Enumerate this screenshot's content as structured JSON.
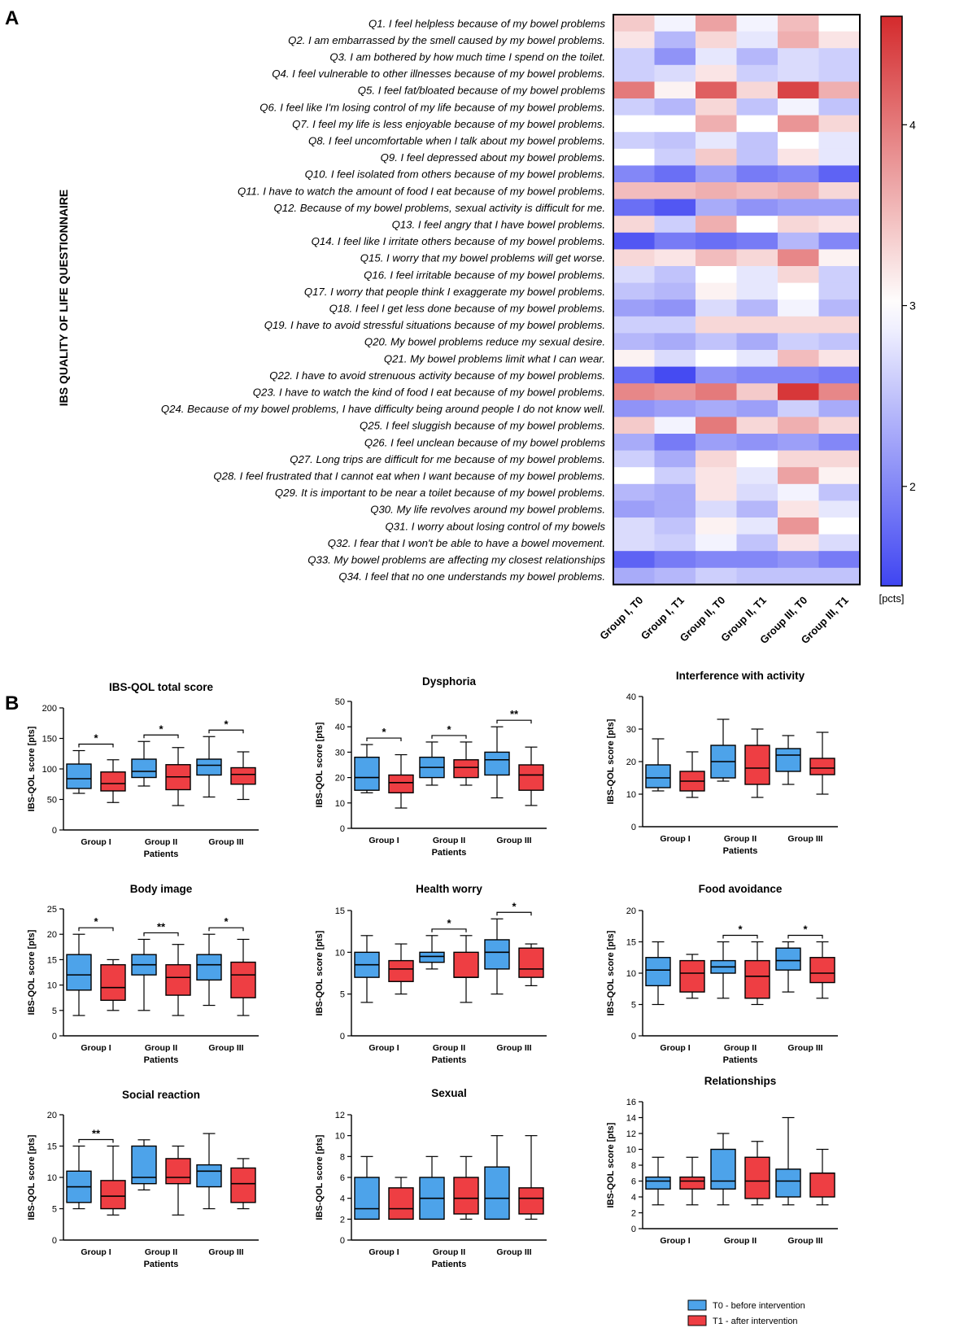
{
  "figure": {
    "panel_a_label": "A",
    "panel_b_label": "B"
  },
  "chart_data": [
    {
      "type": "heatmap",
      "id": "heatmap",
      "ylabel": "IBS QUALITY OF LIFE QUESTIONNAIRE",
      "columns": [
        "Group I, T0",
        "Group I, T1",
        "Group II, T0",
        "Group II, T1",
        "Group III, T0",
        "Group III, T1"
      ],
      "rows": [
        "Q1. I feel helpless because of my bowel problems",
        "Q2. I am embarrassed by the smell caused by my bowel problems.",
        "Q3. I am bothered by how much time I spend on the toilet.",
        "Q4. I feel vulnerable to other illnesses because of my bowel problems.",
        "Q5. I feel fat/bloated because of my bowel problems",
        "Q6. I feel like I'm losing control of my life because of my bowel problems.",
        "Q7. I feel my life is less enjoyable because of my bowel problems.",
        "Q8. I feel uncomfortable when I talk about my bowel problems.",
        "Q9. I feel depressed about my bowel problems.",
        "Q10. I feel isolated from others because of my bowel problems.",
        "Q11. I have to watch the amount of food I eat because of my bowel problems.",
        "Q12. Because of my bowel problems, sexual activity is difficult for me.",
        "Q13. I feel angry that I have bowel problems.",
        "Q14. I feel like I irritate others because of my bowel problems.",
        "Q15. I worry that my bowel problems will get worse.",
        "Q16. I feel irritable because of my bowel problems.",
        "Q17. I worry that people think I exaggerate my bowel problems.",
        "Q18. I feel I get less done because of my bowel problems.",
        "Q19. I have to avoid stressful situations because of my bowel problems.",
        "Q20. My bowel problems reduce my sexual desire.",
        "Q21. My bowel problems limit what I can wear.",
        "Q22. I have to avoid strenuous activity because of my bowel problems.",
        "Q23. I have to watch the kind of food I eat because of my bowel problems.",
        "Q24. Because of my bowel problems, I have difficulty being around people I do not know well.",
        "Q25. I feel sluggish because of my bowel problems.",
        "Q26. I feel unclean because of my bowel problems",
        "Q27. Long trips are difficult for me because of my bowel problems.",
        "Q28. I feel frustrated that I cannot eat when I want because of my bowel problems.",
        "Q29. It is important to be near a toilet because of my bowel problems.",
        "Q30. My life revolves around my bowel problems.",
        "Q31. I worry about losing control of my bowels",
        "Q32. I fear that I won't be able to have a bowel movement.",
        "Q33. My bowel problems are affecting my closest relationships",
        "Q34. I feel that no one understands my bowel problems."
      ],
      "values": [
        [
          3.4,
          2.9,
          3.7,
          2.9,
          3.5,
          3.0
        ],
        [
          3.2,
          2.4,
          3.3,
          2.8,
          3.6,
          3.2
        ],
        [
          2.6,
          2.1,
          2.8,
          2.4,
          2.7,
          2.6
        ],
        [
          2.6,
          2.7,
          3.2,
          2.6,
          2.7,
          2.6
        ],
        [
          4.0,
          3.1,
          4.2,
          3.3,
          4.4,
          3.6
        ],
        [
          2.6,
          2.4,
          3.3,
          2.5,
          2.9,
          2.5
        ],
        [
          3.0,
          3.0,
          3.6,
          3.0,
          3.8,
          3.3
        ],
        [
          2.6,
          2.5,
          2.8,
          2.5,
          3.0,
          2.8
        ],
        [
          3.0,
          2.6,
          3.4,
          2.5,
          3.2,
          2.8
        ],
        [
          2.0,
          1.8,
          2.2,
          1.9,
          2.0,
          1.7
        ],
        [
          3.5,
          3.5,
          3.6,
          3.5,
          3.6,
          3.3
        ],
        [
          1.8,
          1.6,
          2.3,
          2.1,
          2.2,
          2.2
        ],
        [
          3.3,
          2.6,
          3.6,
          3.0,
          3.3,
          3.2
        ],
        [
          1.6,
          1.9,
          1.8,
          1.9,
          2.4,
          2.0
        ],
        [
          3.3,
          3.2,
          3.5,
          3.3,
          3.9,
          3.1
        ],
        [
          2.7,
          2.5,
          3.0,
          2.8,
          3.3,
          2.6
        ],
        [
          2.5,
          2.4,
          3.1,
          2.8,
          3.0,
          2.6
        ],
        [
          2.2,
          2.1,
          2.7,
          2.4,
          2.9,
          2.4
        ],
        [
          2.6,
          2.6,
          3.3,
          3.3,
          3.3,
          3.3
        ],
        [
          2.4,
          2.3,
          2.5,
          2.3,
          2.6,
          2.5
        ],
        [
          3.1,
          2.7,
          3.0,
          2.8,
          3.5,
          3.2
        ],
        [
          1.8,
          1.5,
          2.1,
          2.0,
          2.0,
          1.9
        ],
        [
          3.9,
          3.8,
          4.0,
          3.4,
          4.5,
          3.9
        ],
        [
          2.1,
          2.2,
          2.3,
          2.2,
          2.6,
          2.3
        ],
        [
          3.4,
          2.9,
          4.0,
          3.3,
          3.6,
          3.3
        ],
        [
          2.3,
          1.9,
          2.2,
          2.1,
          2.2,
          2.0
        ],
        [
          2.6,
          2.3,
          3.3,
          3.0,
          3.3,
          3.3
        ],
        [
          3.0,
          2.6,
          3.2,
          2.8,
          3.7,
          3.1
        ],
        [
          2.4,
          2.3,
          3.2,
          2.7,
          2.9,
          2.5
        ],
        [
          2.2,
          2.3,
          2.7,
          2.4,
          3.2,
          2.8
        ],
        [
          2.7,
          2.5,
          3.1,
          2.8,
          3.8,
          3.0
        ],
        [
          2.7,
          2.6,
          2.9,
          2.5,
          3.2,
          2.7
        ],
        [
          1.7,
          1.9,
          2.0,
          2.0,
          2.1,
          1.9
        ],
        [
          2.3,
          2.4,
          2.6,
          2.5,
          2.5,
          2.5
        ]
      ],
      "colorbar": {
        "ticks": [
          2,
          3,
          4
        ],
        "label": "[pcts]",
        "min": 1.45,
        "max": 4.6
      }
    },
    {
      "type": "box",
      "title": "IBS-QOL total score",
      "ylabel": "IBS-QOL score [pts]",
      "xlabel": "Patients",
      "ylim": [
        0,
        200
      ],
      "yticks": [
        0,
        50,
        100,
        150,
        200
      ],
      "categories": [
        "Group I",
        "Group II",
        "Group III"
      ],
      "series": [
        {
          "name": "T0",
          "boxes": [
            [
              60,
              68,
              84,
              108,
              130
            ],
            [
              72,
              86,
              96,
              116,
              145
            ],
            [
              54,
              90,
              106,
              116,
              153
            ]
          ]
        },
        {
          "name": "T1",
          "boxes": [
            [
              45,
              64,
              76,
              95,
              115
            ],
            [
              40,
              66,
              87,
              107,
              135
            ],
            [
              50,
              75,
              91,
              102,
              128
            ]
          ]
        }
      ],
      "significance": [
        [
          "Group I",
          "*"
        ],
        [
          "Group II",
          "*"
        ],
        [
          "Group III",
          "*"
        ]
      ]
    },
    {
      "type": "box",
      "title": "Dysphoria",
      "ylabel": "IBS-QOL score [pts]",
      "xlabel": "Patients",
      "ylim": [
        0,
        50
      ],
      "yticks": [
        0,
        10,
        20,
        30,
        40,
        50
      ],
      "categories": [
        "Group I",
        "Group II",
        "Group III"
      ],
      "series": [
        {
          "name": "T0",
          "boxes": [
            [
              14,
              15,
              20,
              28,
              33
            ],
            [
              17,
              20,
              24,
              28,
              34
            ],
            [
              12,
              21,
              27,
              30,
              40
            ]
          ]
        },
        {
          "name": "T1",
          "boxes": [
            [
              8,
              14,
              18,
              21,
              29
            ],
            [
              17,
              20,
              24,
              27,
              34
            ],
            [
              9,
              15,
              21,
              25,
              32
            ]
          ]
        }
      ],
      "significance": [
        [
          "Group I",
          "*"
        ],
        [
          "Group II",
          "*"
        ],
        [
          "Group III",
          "**"
        ]
      ]
    },
    {
      "type": "box",
      "title": "Interference with activity",
      "ylabel": "IBS-QOL score [pts]",
      "xlabel": "Patients",
      "ylim": [
        0,
        40
      ],
      "yticks": [
        0,
        10,
        20,
        30,
        40
      ],
      "categories": [
        "Group I",
        "Group II",
        "Group III"
      ],
      "series": [
        {
          "name": "T0",
          "boxes": [
            [
              11,
              12,
              15,
              19,
              27
            ],
            [
              14,
              15,
              20,
              25,
              33
            ],
            [
              13,
              17,
              22,
              24,
              28
            ]
          ]
        },
        {
          "name": "T1",
          "boxes": [
            [
              9,
              11,
              14,
              17,
              23
            ],
            [
              9,
              13,
              18,
              25,
              30
            ],
            [
              10,
              16,
              18,
              21,
              29
            ]
          ]
        }
      ],
      "significance": []
    },
    {
      "type": "box",
      "title": "Body image",
      "ylabel": "IBS-QOL score [pts]",
      "xlabel": "Patients",
      "ylim": [
        0,
        25
      ],
      "yticks": [
        0,
        5,
        10,
        15,
        20,
        25
      ],
      "categories": [
        "Group I",
        "Group II",
        "Group III"
      ],
      "series": [
        {
          "name": "T0",
          "boxes": [
            [
              4,
              9,
              12,
              16,
              20
            ],
            [
              5,
              12,
              14,
              16,
              19
            ],
            [
              6,
              11,
              14,
              16,
              20
            ]
          ]
        },
        {
          "name": "T1",
          "boxes": [
            [
              5,
              7,
              9.5,
              14,
              15
            ],
            [
              4,
              8,
              11.5,
              14,
              18
            ],
            [
              4,
              7.5,
              12,
              14.5,
              19
            ]
          ]
        }
      ],
      "significance": [
        [
          "Group I",
          "*"
        ],
        [
          "Group II",
          "**"
        ],
        [
          "Group III",
          "*"
        ]
      ]
    },
    {
      "type": "box",
      "title": "Health worry",
      "ylabel": "IBS-QOL score [pts]",
      "xlabel": "Patients",
      "ylim": [
        0,
        15
      ],
      "yticks": [
        0,
        5,
        10,
        15
      ],
      "categories": [
        "Group I",
        "Group II",
        "Group III"
      ],
      "series": [
        {
          "name": "T0",
          "boxes": [
            [
              4,
              7,
              8.5,
              10,
              12
            ],
            [
              8,
              8.8,
              9.5,
              10,
              12
            ],
            [
              5,
              8,
              10,
              11.5,
              14
            ]
          ]
        },
        {
          "name": "T1",
          "boxes": [
            [
              5,
              6.5,
              8,
              9,
              11
            ],
            [
              4,
              7,
              7,
              10,
              12
            ],
            [
              6,
              7,
              8,
              10.5,
              11
            ]
          ]
        }
      ],
      "significance": [
        [
          "Group II",
          "*"
        ],
        [
          "Group III",
          "*"
        ]
      ]
    },
    {
      "type": "box",
      "title": "Food avoidance",
      "ylabel": "IBS-QOL score [pts]",
      "xlabel": "Patients",
      "ylim": [
        0,
        20
      ],
      "yticks": [
        0,
        5,
        10,
        15,
        20
      ],
      "categories": [
        "Group I",
        "Group II",
        "Group III"
      ],
      "series": [
        {
          "name": "T0",
          "boxes": [
            [
              5,
              8,
              10.5,
              12.5,
              15
            ],
            [
              6,
              10,
              11,
              12,
              15
            ],
            [
              7,
              10.5,
              12,
              14,
              15
            ]
          ]
        },
        {
          "name": "T1",
          "boxes": [
            [
              6,
              7,
              10,
              12,
              13
            ],
            [
              5,
              6,
              9.5,
              12,
              15
            ],
            [
              6,
              8.5,
              10,
              12.5,
              15
            ]
          ]
        }
      ],
      "significance": [
        [
          "Group II",
          "*"
        ],
        [
          "Group III",
          "*"
        ]
      ]
    },
    {
      "type": "box",
      "title": "Social reaction",
      "ylabel": "IBS-QOL score [pts]",
      "xlabel": "Patients",
      "ylim": [
        0,
        20
      ],
      "yticks": [
        0,
        5,
        10,
        15,
        20
      ],
      "categories": [
        "Group I",
        "Group II",
        "Group III"
      ],
      "series": [
        {
          "name": "T0",
          "boxes": [
            [
              5,
              6,
              8.5,
              11,
              15
            ],
            [
              8,
              9,
              10,
              15,
              16
            ],
            [
              5,
              8.5,
              11,
              12,
              17
            ]
          ]
        },
        {
          "name": "T1",
          "boxes": [
            [
              4,
              5,
              7,
              9.5,
              15
            ],
            [
              4,
              9,
              10,
              13,
              15
            ],
            [
              5,
              6,
              9,
              11.5,
              13
            ]
          ]
        }
      ],
      "significance": [
        [
          "Group I",
          "**"
        ]
      ]
    },
    {
      "type": "box",
      "title": "Sexual",
      "ylabel": "IBS-QOL score [pts]",
      "xlabel": "Patients",
      "ylim": [
        0,
        12
      ],
      "yticks": [
        0,
        2,
        4,
        6,
        8,
        10,
        12
      ],
      "categories": [
        "Group I",
        "Group II",
        "Group III"
      ],
      "series": [
        {
          "name": "T0",
          "boxes": [
            [
              2,
              2,
              3,
              6,
              8
            ],
            [
              2,
              2,
              4,
              6,
              8
            ],
            [
              2,
              2,
              4,
              7,
              10
            ]
          ]
        },
        {
          "name": "T1",
          "boxes": [
            [
              2,
              2,
              3,
              5,
              6
            ],
            [
              2,
              2.5,
              4,
              6,
              8
            ],
            [
              2,
              2.5,
              4,
              5,
              10
            ]
          ]
        }
      ],
      "significance": []
    },
    {
      "type": "box",
      "title": "Relationships",
      "ylabel": "IBS-QOL score [pts]",
      "xlabel": "",
      "ylim": [
        0,
        16
      ],
      "yticks": [
        0,
        2,
        4,
        6,
        8,
        10,
        12,
        14,
        16
      ],
      "categories": [
        "Group I",
        "Group II",
        "Group III"
      ],
      "series": [
        {
          "name": "T0",
          "boxes": [
            [
              3,
              5,
              6,
              6.5,
              9
            ],
            [
              3,
              5,
              6,
              10,
              12
            ],
            [
              3,
              4,
              6,
              7.5,
              14
            ]
          ]
        },
        {
          "name": "T1",
          "boxes": [
            [
              3,
              5,
              6,
              6.5,
              9
            ],
            [
              3,
              3.8,
              6,
              9,
              11
            ],
            [
              3,
              4,
              7,
              7,
              10
            ]
          ]
        }
      ],
      "significance": []
    }
  ],
  "legend": {
    "t0_label": "T0 - before intervention",
    "t1_label": "T1 - after intervention",
    "t0_color": "#4da3ea",
    "t1_color": "#ee3e43"
  },
  "colors": {
    "heat_low": "#3f45f2",
    "heat_mid": "#ffffff",
    "heat_high": "#d42a2c"
  }
}
